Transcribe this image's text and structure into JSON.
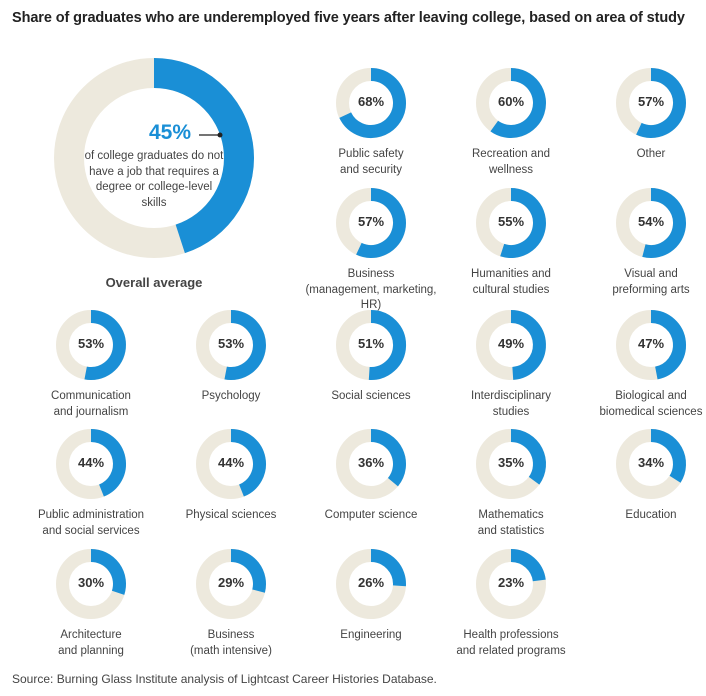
{
  "chart_data": {
    "type": "pie",
    "title": "Share of graduates who are underemployed five years after leaving college, based on area of study",
    "source": "Source: Burning Glass Institute analysis of Lightcast Career Histories Database.",
    "colors": {
      "filled": "#1a8fd6",
      "remainder": "#ede9dd"
    },
    "overall": {
      "value": 45,
      "value_label": "45%",
      "description": "of college graduates do not have a job that requires a degree or college-level skills",
      "label": "Overall average"
    },
    "fields": [
      {
        "label_lines": [
          "Public safety",
          "and security"
        ],
        "value": 68,
        "value_label": "68%"
      },
      {
        "label_lines": [
          "Recreation and",
          "wellness"
        ],
        "value": 60,
        "value_label": "60%"
      },
      {
        "label_lines": [
          "Other"
        ],
        "value": 57,
        "value_label": "57%"
      },
      {
        "label_lines": [
          "Business",
          "(management, marketing, HR)"
        ],
        "value": 57,
        "value_label": "57%"
      },
      {
        "label_lines": [
          "Humanities and",
          "cultural studies"
        ],
        "value": 55,
        "value_label": "55%"
      },
      {
        "label_lines": [
          "Visual and",
          "preforming arts"
        ],
        "value": 54,
        "value_label": "54%"
      },
      {
        "label_lines": [
          "Communication",
          "and journalism"
        ],
        "value": 53,
        "value_label": "53%"
      },
      {
        "label_lines": [
          "Psychology"
        ],
        "value": 53,
        "value_label": "53%"
      },
      {
        "label_lines": [
          "Social sciences"
        ],
        "value": 51,
        "value_label": "51%"
      },
      {
        "label_lines": [
          "Interdisciplinary",
          "studies"
        ],
        "value": 49,
        "value_label": "49%"
      },
      {
        "label_lines": [
          "Biological and",
          "biomedical sciences"
        ],
        "value": 47,
        "value_label": "47%"
      },
      {
        "label_lines": [
          "Public administration",
          "and social services"
        ],
        "value": 44,
        "value_label": "44%"
      },
      {
        "label_lines": [
          "Physical sciences"
        ],
        "value": 44,
        "value_label": "44%"
      },
      {
        "label_lines": [
          "Computer science"
        ],
        "value": 36,
        "value_label": "36%"
      },
      {
        "label_lines": [
          "Mathematics",
          "and statistics"
        ],
        "value": 35,
        "value_label": "35%"
      },
      {
        "label_lines": [
          "Education"
        ],
        "value": 34,
        "value_label": "34%"
      },
      {
        "label_lines": [
          "Architecture",
          "and planning"
        ],
        "value": 30,
        "value_label": "30%"
      },
      {
        "label_lines": [
          "Business",
          "(math intensive)"
        ],
        "value": 29,
        "value_label": "29%"
      },
      {
        "label_lines": [
          "Engineering"
        ],
        "value": 26,
        "value_label": "26%"
      },
      {
        "label_lines": [
          "Health professions",
          "and related programs"
        ],
        "value": 23,
        "value_label": "23%"
      }
    ]
  }
}
